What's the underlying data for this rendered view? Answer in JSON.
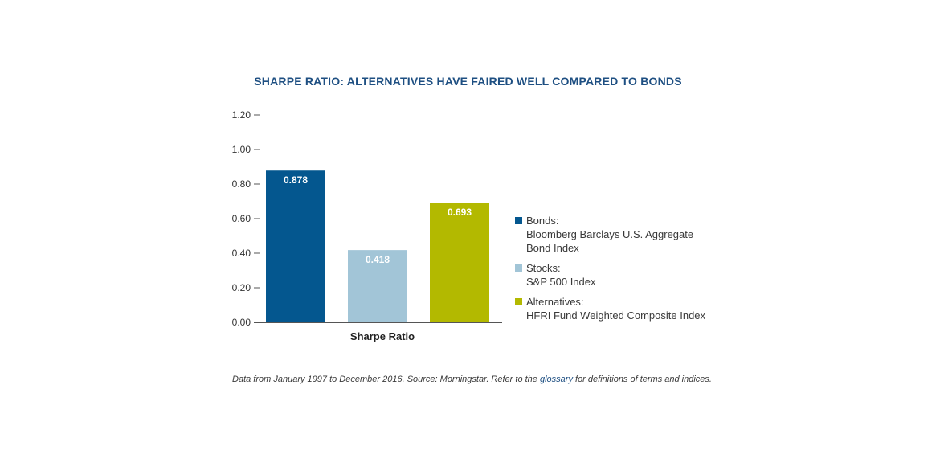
{
  "title": "SHARPE RATIO: ALTERNATIVES HAVE FAIRED WELL COMPARED TO BONDS",
  "chart_data": {
    "type": "bar",
    "categories": [
      "Bonds",
      "Stocks",
      "Alternatives"
    ],
    "values": [
      0.878,
      0.418,
      0.693
    ],
    "value_labels": [
      "0.878",
      "0.418",
      "0.693"
    ],
    "colors": [
      "#04578f",
      "#a2c5d7",
      "#b3b900"
    ],
    "xlabel": "Sharpe Ratio",
    "ylabel": "",
    "ylim": [
      0,
      1.2
    ],
    "yticks": [
      {
        "value": 0,
        "label": "0.00"
      },
      {
        "value": 0.2,
        "label": "0.20"
      },
      {
        "value": 0.4,
        "label": "0.40"
      },
      {
        "value": 0.6,
        "label": "0.60"
      },
      {
        "value": 0.8,
        "label": "0.80"
      },
      {
        "value": 1.0,
        "label": "1.00"
      },
      {
        "value": 1.2,
        "label": "1.20"
      }
    ],
    "grid": false,
    "legend_placement": "right"
  },
  "legend": [
    {
      "label": "Bonds:",
      "description": "Bloomberg Barclays U.S. Aggregate\nBond Index",
      "color": "#04578f"
    },
    {
      "label": "Stocks:",
      "description": "S&P 500 Index",
      "color": "#a2c5d7"
    },
    {
      "label": "Alternatives:",
      "description": "HFRI Fund Weighted Composite Index",
      "color": "#b3b900"
    }
  ],
  "footnote": {
    "before": "Data from January 1997 to December 2016. Source: Morningstar.  Refer to the ",
    "link": "glossary",
    "after": " for definitions of terms and indices."
  }
}
